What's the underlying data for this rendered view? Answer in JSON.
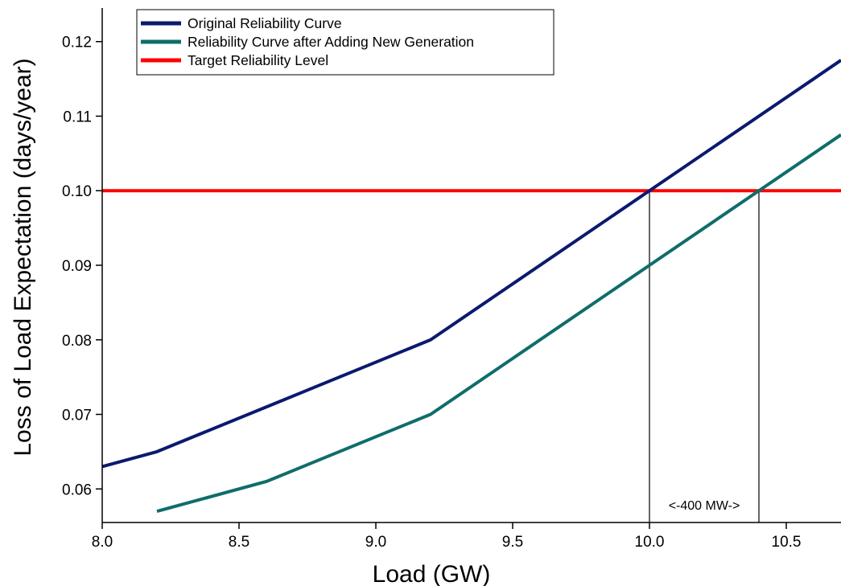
{
  "chart_data": {
    "type": "line",
    "xlabel": "Load (GW)",
    "ylabel": "Loss of Load Expectation (days/year)",
    "xlim": [
      8.0,
      10.7
    ],
    "ylim": [
      0.0555,
      0.1245
    ],
    "x_ticks": [
      8.0,
      8.5,
      9.0,
      9.5,
      10.0,
      10.5
    ],
    "x_tick_labels": [
      "8.0",
      "8.5",
      "9.0",
      "9.5",
      "10.0",
      "10.5"
    ],
    "y_ticks": [
      0.06,
      0.07,
      0.08,
      0.09,
      0.1,
      0.11,
      0.12
    ],
    "y_tick_labels": [
      "0.06",
      "0.07",
      "0.08",
      "0.09",
      "0.10",
      "0.11",
      "0.12"
    ],
    "grid": false,
    "legend_position": "top-left",
    "series": [
      {
        "name": "Original Reliability Curve",
        "color": "#0b1a6e",
        "x": [
          8.0,
          8.2,
          8.6,
          9.2,
          10.0,
          10.7
        ],
        "y": [
          0.063,
          0.065,
          0.071,
          0.08,
          0.1,
          0.1175
        ]
      },
      {
        "name": "Reliability Curve after Adding New Generation",
        "color": "#0f6d6b",
        "x": [
          8.2,
          8.6,
          9.2,
          10.0,
          10.4,
          10.7
        ],
        "y": [
          0.057,
          0.061,
          0.07,
          0.09,
          0.1,
          0.1075
        ]
      },
      {
        "name": "Target Reliability Level",
        "color": "#ff0000",
        "x": [
          8.0,
          10.7
        ],
        "y": [
          0.1,
          0.1
        ]
      }
    ],
    "vertical_markers": [
      10.0,
      10.4
    ],
    "annotations": [
      {
        "text": "<-400 MW->",
        "x": 10.2
      }
    ]
  }
}
